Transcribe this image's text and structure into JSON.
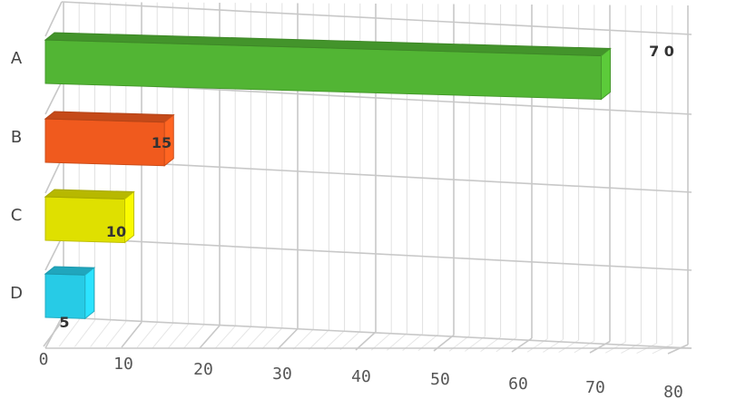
{
  "chart_data": {
    "type": "bar",
    "orientation": "horizontal",
    "style": "3d",
    "title": "",
    "xlabel": "",
    "ylabel": "",
    "categories": [
      "A",
      "B",
      "C",
      "D"
    ],
    "values": [
      70,
      15,
      10,
      5
    ],
    "value_labels": [
      "7 0",
      "15",
      "10",
      "5"
    ],
    "colors": [
      "#52b534",
      "#f05a1e",
      "#dfe000",
      "#27cbe6"
    ],
    "xlim": [
      0,
      80
    ],
    "xticks": [
      0,
      10,
      20,
      30,
      40,
      50,
      60,
      70,
      80
    ],
    "grid": true,
    "legend": "none"
  }
}
